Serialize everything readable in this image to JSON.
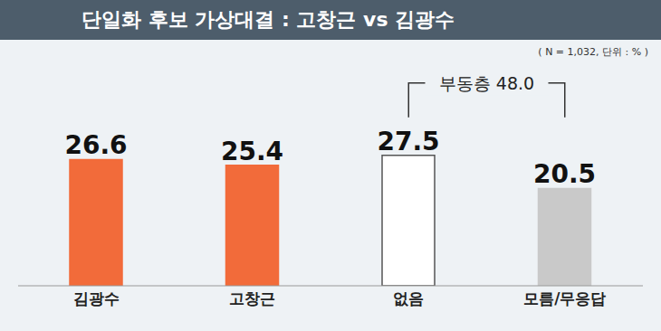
{
  "chart_data": {
    "type": "bar",
    "title": "단일화 후보 가상대결 : 고창근 vs 김광수",
    "subtitle": "( N = 1,032, 단위 : % )",
    "categories": [
      "김광수",
      "고창근",
      "없음",
      "모름/무응답"
    ],
    "values": [
      26.6,
      25.4,
      27.5,
      20.5
    ],
    "colors": [
      "#f26b3a",
      "#f26b3a",
      "#ffffff",
      "#c9c9c9"
    ],
    "ylim": [
      0,
      45
    ],
    "grid": false,
    "data_labels": true,
    "tick_labels": "x",
    "annotation": {
      "label": "부동층",
      "value": 48,
      "value_label": "48.0",
      "categories": [
        "없음",
        "모름/무응답"
      ]
    }
  }
}
